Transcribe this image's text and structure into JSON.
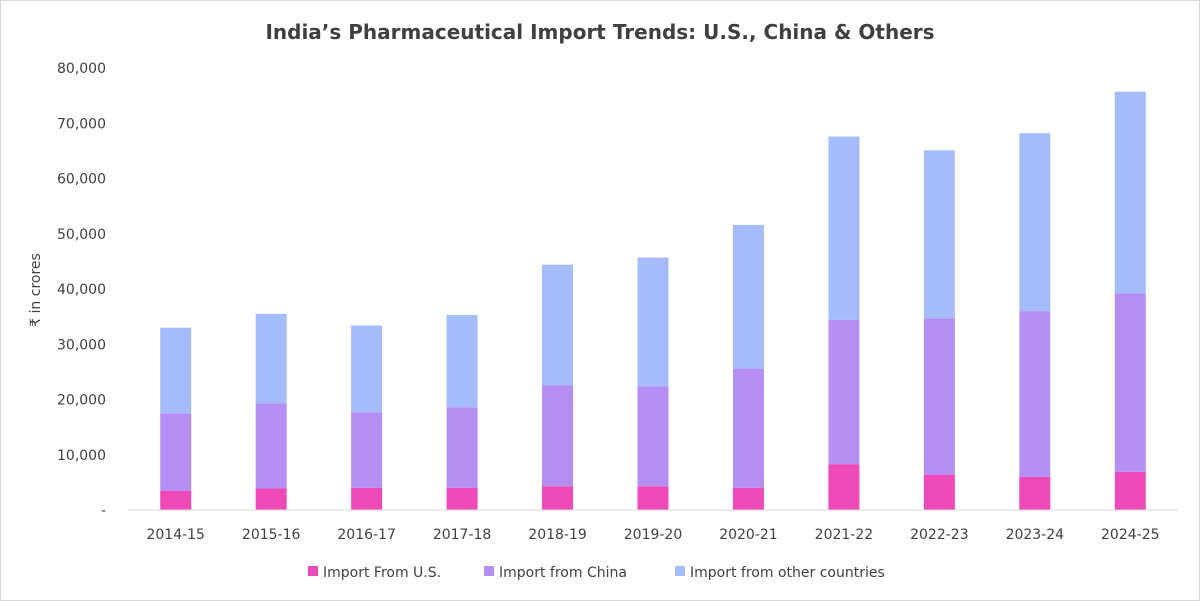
{
  "chart_data": {
    "type": "bar",
    "stacked": true,
    "title": "India’s Pharmaceutical Import Trends: U.S., China & Others",
    "xlabel": "",
    "ylabel": "₹ in crores",
    "ylim": [
      0,
      80000
    ],
    "yticks": [
      "-",
      "10,000",
      "20,000",
      "30,000",
      "40,000",
      "50,000",
      "60,000",
      "70,000",
      "80,000"
    ],
    "grid": false,
    "legend": "bottom",
    "categories": [
      "2014-15",
      "2015-16",
      "2016-17",
      "2017-18",
      "2018-19",
      "2019-20",
      "2020-21",
      "2021-22",
      "2022-23",
      "2023-24",
      "2024-25"
    ],
    "series": [
      {
        "name": "Import From U.S.",
        "color": "#ee49b8",
        "values": [
          3500,
          3900,
          4000,
          4000,
          4300,
          4300,
          4000,
          8300,
          6400,
          6000,
          6900
        ]
      },
      {
        "name": "Import from China",
        "color": "#b48ef2",
        "values": [
          14000,
          15400,
          13700,
          14600,
          18300,
          18100,
          21600,
          26100,
          28300,
          30000,
          32300
        ]
      },
      {
        "name": "Import from other countries",
        "color": "#a5bcfb",
        "values": [
          15500,
          16200,
          15700,
          16700,
          21800,
          23300,
          26000,
          33200,
          30400,
          32200,
          36500
        ]
      }
    ]
  }
}
